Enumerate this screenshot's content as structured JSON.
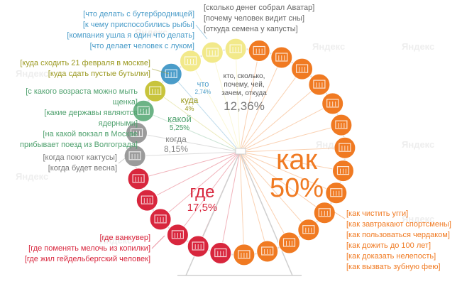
{
  "chart_data": {
    "type": "pie",
    "title": "",
    "categories": [
      "как",
      "где",
      "когда",
      "какой",
      "куда",
      "что",
      "кто, сколько, почему, чей, зачем, откуда"
    ],
    "values": [
      50,
      17.5,
      8.15,
      5.25,
      4,
      2.74,
      12.36
    ],
    "value_labels": [
      "50%",
      "17,5%",
      "8,15%",
      "5,25%",
      "4%",
      "2,74%",
      "12,36%"
    ],
    "colors": [
      "#f07a22",
      "#d8263d",
      "#9b9b9b",
      "#6cb386",
      "#c8c43c",
      "#4a9cc9",
      "#f2e98a"
    ],
    "label_colors": [
      "#f07a22",
      "#d8263d",
      "#8a8a8a",
      "#4fa16e",
      "#9c9a22",
      "#4a9cc9",
      "#555555"
    ],
    "cabins": [
      {
        "category": "кто, сколько, почему, чей, зачем, откуда",
        "count": 3
      },
      {
        "category": "как",
        "count": 14
      },
      {
        "category": "где",
        "count": 6
      },
      {
        "category": "когда",
        "count": 2
      },
      {
        "category": "какой",
        "count": 1
      },
      {
        "category": "куда",
        "count": 1
      },
      {
        "category": "что",
        "count": 1
      }
    ],
    "example_queries": {
      "кто, сколько, почему, чей, зачем, откуда": [
        "[сколько денег собрал Аватар]",
        "[почему человек видит сны]",
        "[откуда семена у капусты]"
      ],
      "что": [
        "[что делать с бутербродницей]",
        "[к чему приспособились рыбы]",
        "[компания ушла я один что делать]",
        "[что делает человек с луком]"
      ],
      "куда": [
        "[куда сходить 21 февраля в москве]",
        "[куда сдать пустые бутылки]"
      ],
      "какой": [
        "[с какого возраста можно мыть щенка]",
        "[какие державы являются ядерными]",
        "[на какой вокзал в Москве прибывает поезд из Волгограда]"
      ],
      "когда": [
        "[когда поют кактусы]",
        "[когда будет весна]"
      ],
      "где": [
        "[где ванкувер]",
        "[где поменять мелочь из копилки]",
        "[где жил гейдельбергский человек]"
      ],
      "как": [
        "[как чистить угги]",
        "[как завтракают спортсмены]",
        "[как пользоваться чердаком]",
        "[как дожить до 100 лет]",
        "[как доказать нелепость]",
        "[как вызвать зубную фею]"
      ]
    }
  },
  "watermark": "Яндекс"
}
